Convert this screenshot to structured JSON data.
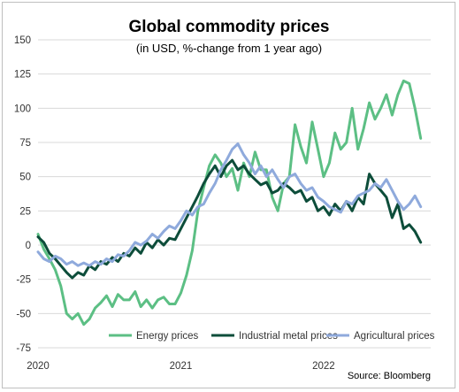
{
  "chart_data": {
    "type": "line",
    "title": "Global commodity prices",
    "subtitle": "(in USD, %-change from 1 year ago)",
    "source": "Source: Bloomberg",
    "xlabel": "",
    "ylabel": "",
    "x_ticks": [
      "2020",
      "2021",
      "2022"
    ],
    "y_ticks": [
      150,
      125,
      100,
      75,
      50,
      25,
      0,
      -25,
      -50,
      -75
    ],
    "ylim": [
      -75,
      150
    ],
    "xlim": [
      2020.0,
      2022.75
    ],
    "grid": "horizontal",
    "legend": "bottom",
    "series": [
      {
        "name": "Energy prices",
        "color": "#5cbf84",
        "points": [
          [
            2020.0,
            8
          ],
          [
            2020.04,
            -3
          ],
          [
            2020.08,
            -10
          ],
          [
            2020.12,
            -18
          ],
          [
            2020.16,
            -30
          ],
          [
            2020.2,
            -50
          ],
          [
            2020.24,
            -54
          ],
          [
            2020.28,
            -50
          ],
          [
            2020.32,
            -58
          ],
          [
            2020.36,
            -54
          ],
          [
            2020.4,
            -46
          ],
          [
            2020.44,
            -42
          ],
          [
            2020.48,
            -37
          ],
          [
            2020.52,
            -45
          ],
          [
            2020.56,
            -36
          ],
          [
            2020.6,
            -40
          ],
          [
            2020.64,
            -40
          ],
          [
            2020.68,
            -34
          ],
          [
            2020.72,
            -45
          ],
          [
            2020.76,
            -40
          ],
          [
            2020.8,
            -46
          ],
          [
            2020.84,
            -40
          ],
          [
            2020.88,
            -38
          ],
          [
            2020.92,
            -43
          ],
          [
            2020.96,
            -43
          ],
          [
            2021.0,
            -35
          ],
          [
            2021.04,
            -22
          ],
          [
            2021.08,
            -4
          ],
          [
            2021.12,
            25
          ],
          [
            2021.16,
            42
          ],
          [
            2021.2,
            58
          ],
          [
            2021.24,
            66
          ],
          [
            2021.28,
            60
          ],
          [
            2021.32,
            50
          ],
          [
            2021.36,
            56
          ],
          [
            2021.4,
            40
          ],
          [
            2021.44,
            60
          ],
          [
            2021.48,
            50
          ],
          [
            2021.52,
            68
          ],
          [
            2021.56,
            55
          ],
          [
            2021.6,
            55
          ],
          [
            2021.64,
            35
          ],
          [
            2021.68,
            25
          ],
          [
            2021.72,
            45
          ],
          [
            2021.76,
            50
          ],
          [
            2021.8,
            88
          ],
          [
            2021.84,
            72
          ],
          [
            2021.88,
            60
          ],
          [
            2021.92,
            90
          ],
          [
            2021.96,
            70
          ],
          [
            2022.0,
            50
          ],
          [
            2022.04,
            60
          ],
          [
            2022.08,
            82
          ],
          [
            2022.12,
            70
          ],
          [
            2022.16,
            75
          ],
          [
            2022.2,
            100
          ],
          [
            2022.24,
            70
          ],
          [
            2022.28,
            85
          ],
          [
            2022.32,
            104
          ],
          [
            2022.36,
            92
          ],
          [
            2022.4,
            100
          ],
          [
            2022.44,
            110
          ],
          [
            2022.48,
            95
          ],
          [
            2022.52,
            110
          ],
          [
            2022.56,
            120
          ],
          [
            2022.6,
            118
          ],
          [
            2022.64,
            100
          ],
          [
            2022.68,
            78
          ]
        ]
      },
      {
        "name": "Industrial metal prices",
        "color": "#0d4d3a",
        "points": [
          [
            2020.0,
            6
          ],
          [
            2020.04,
            2
          ],
          [
            2020.08,
            -6
          ],
          [
            2020.12,
            -10
          ],
          [
            2020.16,
            -15
          ],
          [
            2020.2,
            -20
          ],
          [
            2020.24,
            -24
          ],
          [
            2020.28,
            -20
          ],
          [
            2020.32,
            -22
          ],
          [
            2020.36,
            -15
          ],
          [
            2020.4,
            -18
          ],
          [
            2020.44,
            -12
          ],
          [
            2020.48,
            -14
          ],
          [
            2020.52,
            -9
          ],
          [
            2020.56,
            -12
          ],
          [
            2020.6,
            -6
          ],
          [
            2020.64,
            -8
          ],
          [
            2020.68,
            -2
          ],
          [
            2020.72,
            -6
          ],
          [
            2020.76,
            2
          ],
          [
            2020.8,
            -2
          ],
          [
            2020.84,
            4
          ],
          [
            2020.88,
            0
          ],
          [
            2020.92,
            5
          ],
          [
            2020.96,
            4
          ],
          [
            2021.0,
            12
          ],
          [
            2021.04,
            20
          ],
          [
            2021.08,
            28
          ],
          [
            2021.12,
            36
          ],
          [
            2021.16,
            45
          ],
          [
            2021.2,
            52
          ],
          [
            2021.24,
            58
          ],
          [
            2021.28,
            50
          ],
          [
            2021.32,
            58
          ],
          [
            2021.36,
            62
          ],
          [
            2021.4,
            55
          ],
          [
            2021.44,
            58
          ],
          [
            2021.48,
            52
          ],
          [
            2021.52,
            48
          ],
          [
            2021.56,
            44
          ],
          [
            2021.6,
            46
          ],
          [
            2021.64,
            38
          ],
          [
            2021.68,
            40
          ],
          [
            2021.72,
            45
          ],
          [
            2021.76,
            42
          ],
          [
            2021.8,
            38
          ],
          [
            2021.84,
            40
          ],
          [
            2021.88,
            32
          ],
          [
            2021.92,
            35
          ],
          [
            2021.96,
            25
          ],
          [
            2022.0,
            28
          ],
          [
            2022.04,
            22
          ],
          [
            2022.08,
            30
          ],
          [
            2022.12,
            25
          ],
          [
            2022.16,
            32
          ],
          [
            2022.2,
            25
          ],
          [
            2022.24,
            35
          ],
          [
            2022.28,
            30
          ],
          [
            2022.32,
            52
          ],
          [
            2022.36,
            45
          ],
          [
            2022.4,
            40
          ],
          [
            2022.44,
            35
          ],
          [
            2022.48,
            20
          ],
          [
            2022.52,
            30
          ],
          [
            2022.56,
            12
          ],
          [
            2022.6,
            15
          ],
          [
            2022.64,
            10
          ],
          [
            2022.68,
            2
          ]
        ]
      },
      {
        "name": "Agricultural prices",
        "color": "#8faadc",
        "points": [
          [
            2020.0,
            -5
          ],
          [
            2020.04,
            -10
          ],
          [
            2020.08,
            -12
          ],
          [
            2020.12,
            -8
          ],
          [
            2020.16,
            -10
          ],
          [
            2020.2,
            -14
          ],
          [
            2020.24,
            -12
          ],
          [
            2020.28,
            -15
          ],
          [
            2020.32,
            -13
          ],
          [
            2020.36,
            -15
          ],
          [
            2020.4,
            -12
          ],
          [
            2020.44,
            -14
          ],
          [
            2020.48,
            -10
          ],
          [
            2020.52,
            -12
          ],
          [
            2020.56,
            -7
          ],
          [
            2020.6,
            -8
          ],
          [
            2020.64,
            -4
          ],
          [
            2020.68,
            2
          ],
          [
            2020.72,
            0
          ],
          [
            2020.76,
            3
          ],
          [
            2020.8,
            8
          ],
          [
            2020.84,
            5
          ],
          [
            2020.88,
            10
          ],
          [
            2020.92,
            14
          ],
          [
            2020.96,
            12
          ],
          [
            2021.0,
            18
          ],
          [
            2021.04,
            25
          ],
          [
            2021.08,
            22
          ],
          [
            2021.12,
            28
          ],
          [
            2021.16,
            30
          ],
          [
            2021.2,
            38
          ],
          [
            2021.24,
            45
          ],
          [
            2021.28,
            55
          ],
          [
            2021.32,
            62
          ],
          [
            2021.36,
            70
          ],
          [
            2021.4,
            74
          ],
          [
            2021.44,
            66
          ],
          [
            2021.48,
            60
          ],
          [
            2021.52,
            52
          ],
          [
            2021.56,
            58
          ],
          [
            2021.6,
            50
          ],
          [
            2021.64,
            55
          ],
          [
            2021.68,
            48
          ],
          [
            2021.72,
            42
          ],
          [
            2021.76,
            50
          ],
          [
            2021.8,
            52
          ],
          [
            2021.84,
            45
          ],
          [
            2021.88,
            40
          ],
          [
            2021.92,
            42
          ],
          [
            2021.96,
            35
          ],
          [
            2022.0,
            32
          ],
          [
            2022.04,
            28
          ],
          [
            2022.08,
            26
          ],
          [
            2022.12,
            24
          ],
          [
            2022.16,
            32
          ],
          [
            2022.2,
            30
          ],
          [
            2022.24,
            36
          ],
          [
            2022.28,
            38
          ],
          [
            2022.32,
            40
          ],
          [
            2022.36,
            45
          ],
          [
            2022.4,
            42
          ],
          [
            2022.44,
            48
          ],
          [
            2022.48,
            40
          ],
          [
            2022.52,
            32
          ],
          [
            2022.56,
            26
          ],
          [
            2022.6,
            30
          ],
          [
            2022.64,
            36
          ],
          [
            2022.68,
            28
          ]
        ]
      }
    ]
  }
}
